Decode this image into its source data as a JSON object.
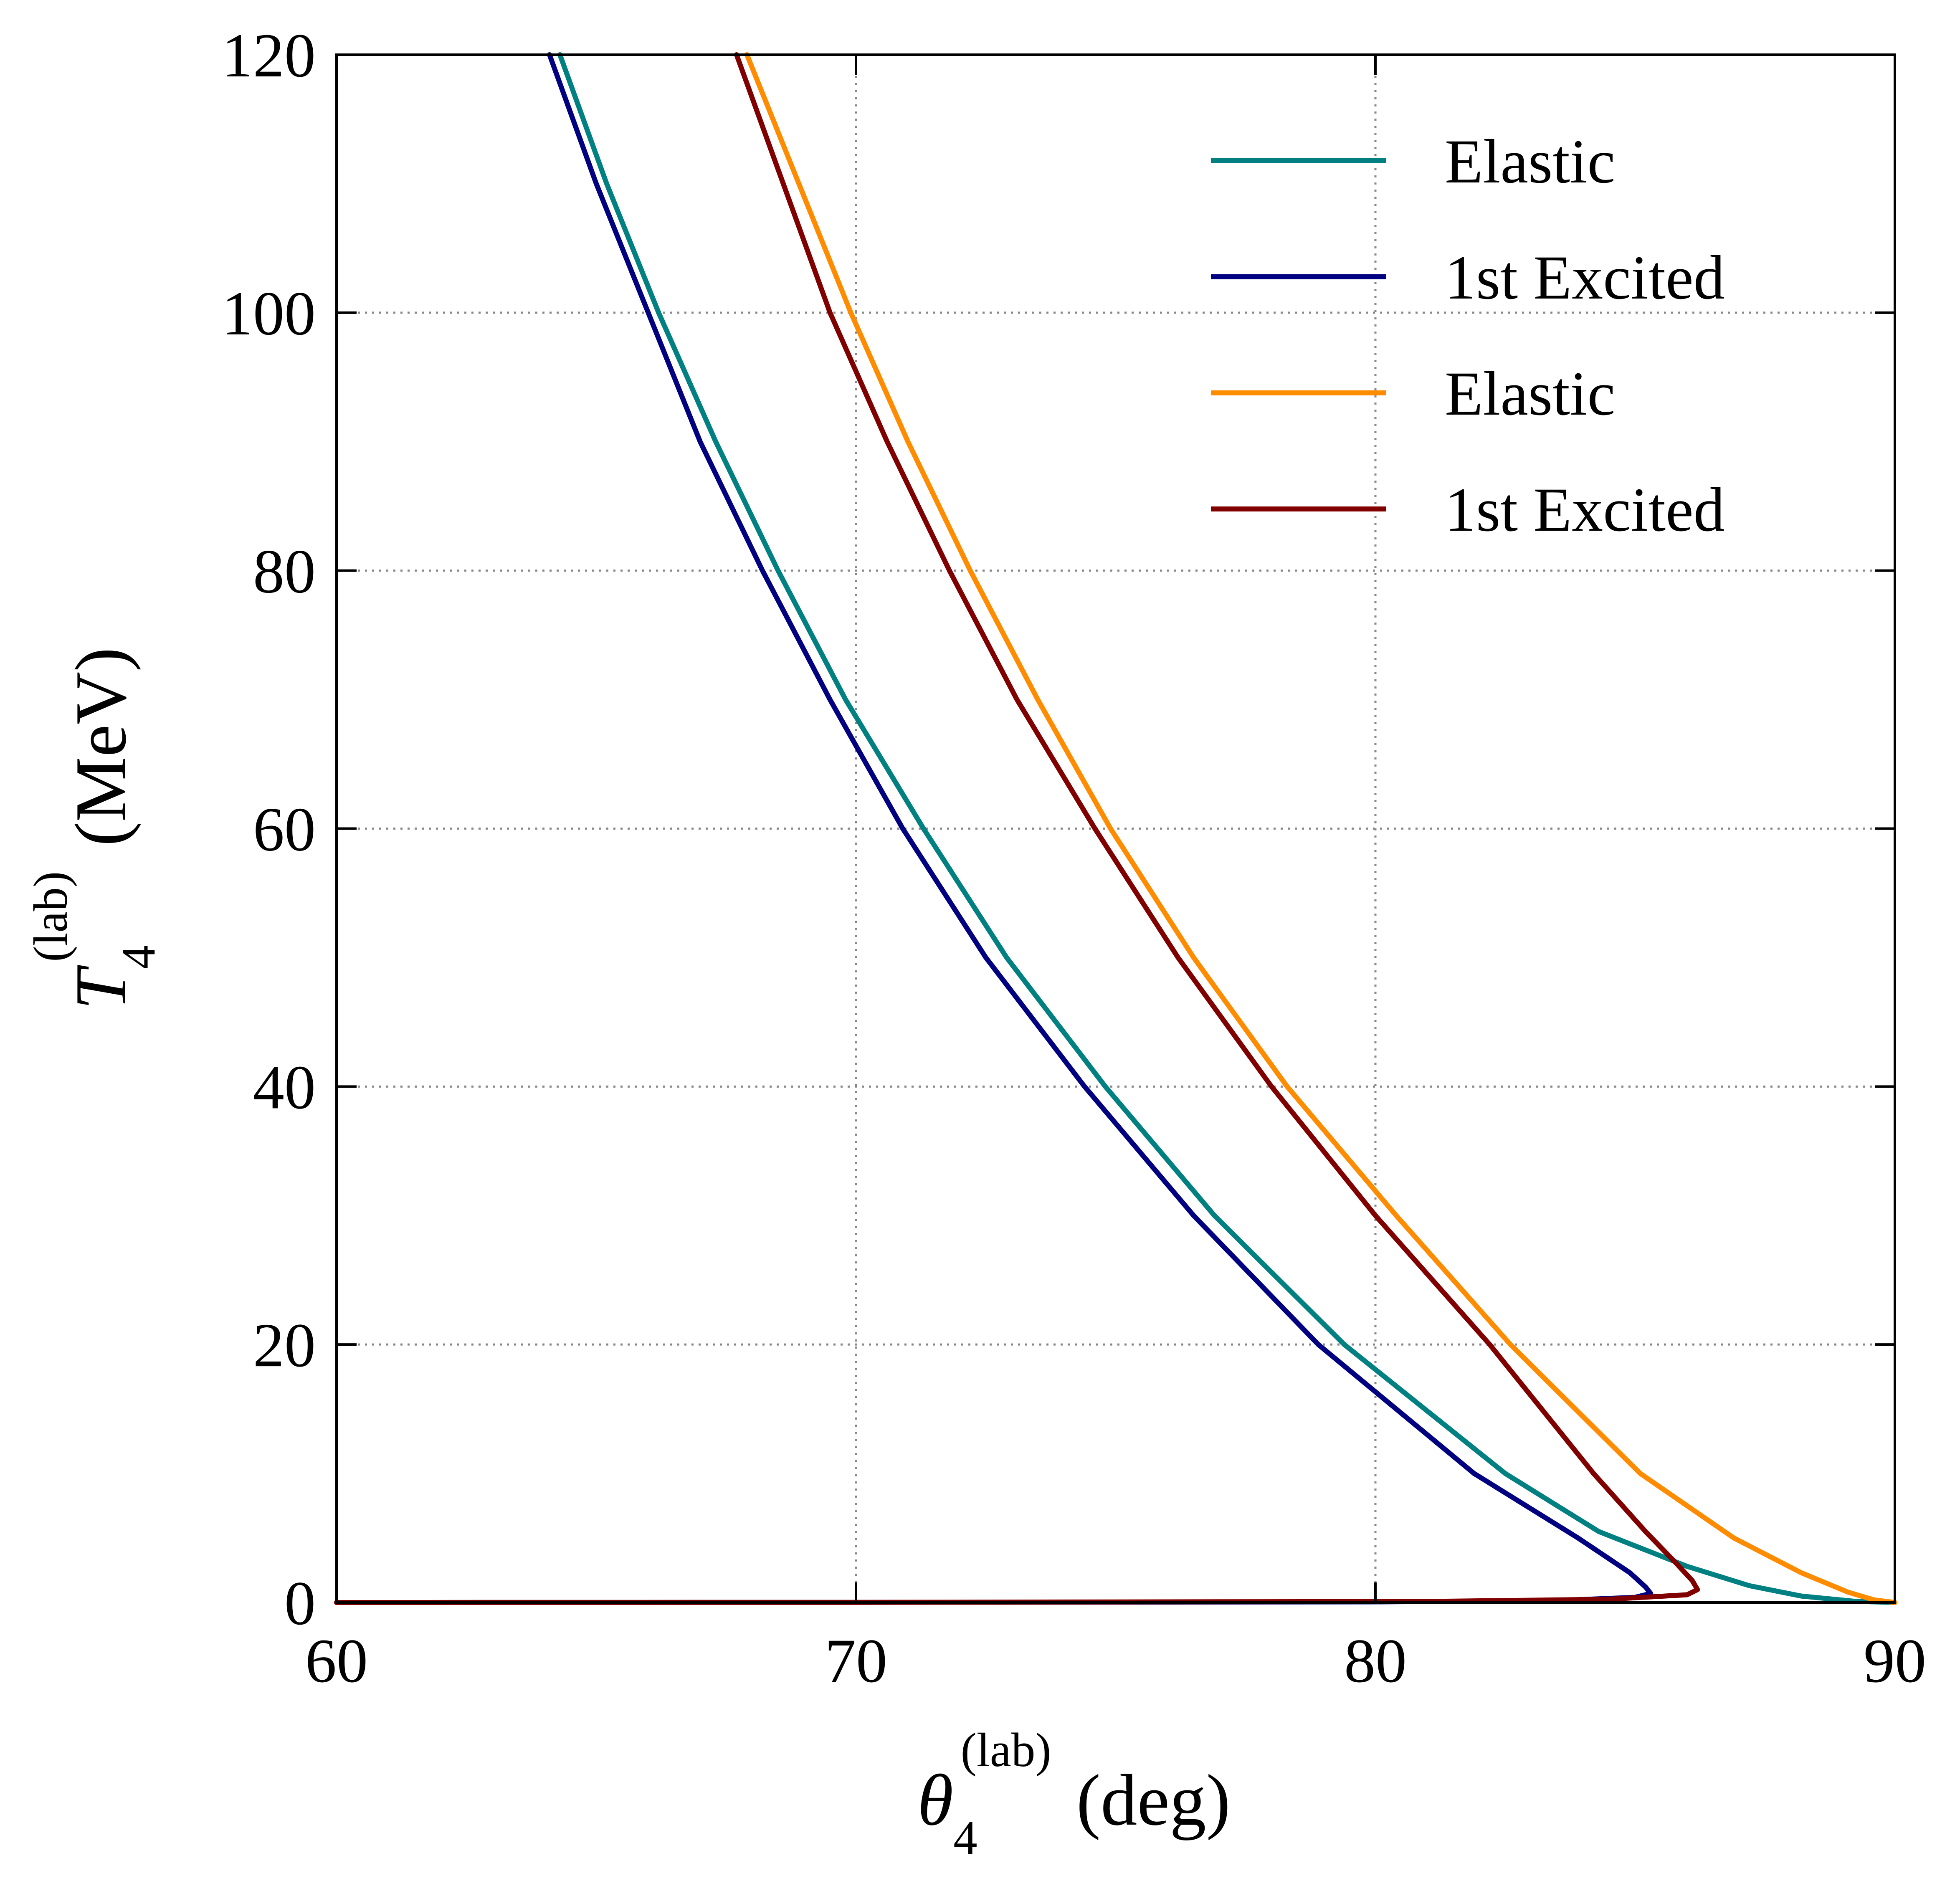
{
  "chart_data": {
    "type": "line",
    "xlabel": {
      "symbol": "θ",
      "subscript": "4",
      "superscript": "(lab)",
      "unit": "(deg)"
    },
    "ylabel": {
      "symbol": "T",
      "subscript": "4",
      "superscript": "(lab)",
      "unit": "(MeV)"
    },
    "xlim": [
      60,
      90
    ],
    "ylim": [
      0,
      120
    ],
    "xticks": [
      60,
      70,
      80,
      90
    ],
    "yticks": [
      0,
      20,
      40,
      60,
      80,
      100,
      120
    ],
    "grid": true,
    "grid_style": "dotted",
    "ticks_direction": "in",
    "legend": {
      "position": "top-right",
      "frame": false
    },
    "series": [
      {
        "name": "Elastic",
        "color": "#008080",
        "points": [
          [
            64.3,
            120
          ],
          [
            65.2,
            110
          ],
          [
            66.2,
            100
          ],
          [
            67.3,
            90
          ],
          [
            68.5,
            80
          ],
          [
            69.8,
            70
          ],
          [
            71.3,
            60
          ],
          [
            72.9,
            50
          ],
          [
            74.8,
            40
          ],
          [
            76.9,
            30
          ],
          [
            79.4,
            20
          ],
          [
            82.5,
            10
          ],
          [
            84.3,
            5.5
          ],
          [
            86.0,
            2.8
          ],
          [
            87.2,
            1.3
          ],
          [
            88.2,
            0.5
          ],
          [
            89.2,
            0.1
          ],
          [
            90.0,
            0
          ]
        ]
      },
      {
        "name": "1st Excited",
        "color": "#000080",
        "points": [
          [
            64.1,
            120
          ],
          [
            65.0,
            110
          ],
          [
            66.0,
            100
          ],
          [
            67.0,
            90
          ],
          [
            68.2,
            80
          ],
          [
            69.5,
            70
          ],
          [
            70.9,
            60
          ],
          [
            72.5,
            50
          ],
          [
            74.4,
            40
          ],
          [
            76.5,
            30
          ],
          [
            78.9,
            20
          ],
          [
            81.9,
            10
          ],
          [
            83.9,
            5
          ],
          [
            84.9,
            2.3
          ],
          [
            85.2,
            1.2
          ],
          [
            85.3,
            0.7
          ],
          [
            85.0,
            0.4
          ],
          [
            83.5,
            0.15
          ],
          [
            80.0,
            0.05
          ],
          [
            70.0,
            0.01
          ],
          [
            60.0,
            0
          ]
        ]
      },
      {
        "name": "Elastic",
        "color": "#FF8C00",
        "points": [
          [
            67.9,
            120
          ],
          [
            68.9,
            110
          ],
          [
            69.9,
            100
          ],
          [
            71.0,
            90
          ],
          [
            72.2,
            80
          ],
          [
            73.5,
            70
          ],
          [
            74.9,
            60
          ],
          [
            76.5,
            50
          ],
          [
            78.3,
            40
          ],
          [
            80.4,
            30
          ],
          [
            82.6,
            20
          ],
          [
            85.1,
            10
          ],
          [
            86.9,
            5
          ],
          [
            88.2,
            2.3
          ],
          [
            89.1,
            0.8
          ],
          [
            89.6,
            0.2
          ],
          [
            90.0,
            0
          ]
        ]
      },
      {
        "name": "1st Excited",
        "color": "#800000",
        "points": [
          [
            67.7,
            120
          ],
          [
            68.6,
            110
          ],
          [
            69.5,
            100
          ],
          [
            70.6,
            90
          ],
          [
            71.8,
            80
          ],
          [
            73.1,
            70
          ],
          [
            74.6,
            60
          ],
          [
            76.2,
            50
          ],
          [
            78.0,
            40
          ],
          [
            80.0,
            30
          ],
          [
            82.2,
            20
          ],
          [
            84.2,
            10
          ],
          [
            85.2,
            5.5
          ],
          [
            85.8,
            3
          ],
          [
            86.1,
            1.7
          ],
          [
            86.2,
            1.0
          ],
          [
            86.0,
            0.6
          ],
          [
            84.5,
            0.25
          ],
          [
            81.0,
            0.08
          ],
          [
            70.0,
            0.01
          ],
          [
            60.0,
            0
          ]
        ]
      }
    ]
  }
}
